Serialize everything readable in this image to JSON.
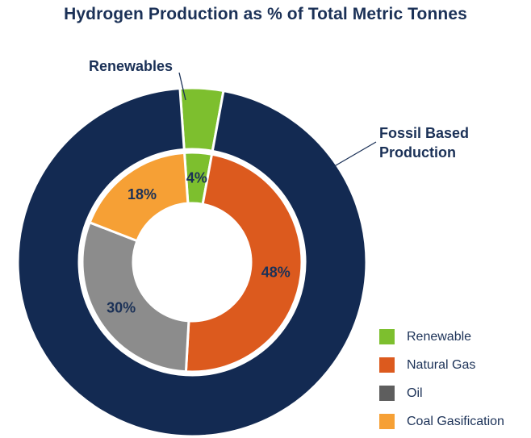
{
  "chart_data": {
    "type": "pie",
    "title": "Hydrogen Production as % of Total Metric Tonnes",
    "outer_ring": {
      "slices": [
        {
          "label": "Renewables",
          "value": 4,
          "color": "#7dbf2e"
        },
        {
          "label": "Fossil Based Production",
          "value": 96,
          "color": "#132a52"
        }
      ]
    },
    "inner_ring": {
      "slices": [
        {
          "label": "Renewable",
          "value": 4,
          "display": "4%",
          "color": "#7dbf2e"
        },
        {
          "label": "Natural Gas",
          "value": 48,
          "display": "48%",
          "color": "#dc5a1e"
        },
        {
          "label": "Oil",
          "value": 30,
          "display": "30%",
          "color": "#8c8c8c"
        },
        {
          "label": "Coal Gasification",
          "value": 18,
          "display": "18%",
          "color": "#f6a035"
        }
      ]
    },
    "callouts": {
      "renewables": "Renewables",
      "fossil_line1": "Fossil Based",
      "fossil_line2": "Production"
    },
    "legend": {
      "position": "bottom-right",
      "items": [
        {
          "label": "Renewable",
          "color": "#7dbf2e"
        },
        {
          "label": "Natural Gas",
          "color": "#dc5a1e"
        },
        {
          "label": "Oil",
          "color": "#5e5e5e"
        },
        {
          "label": "Coal Gasification",
          "color": "#f6a035"
        }
      ]
    }
  }
}
